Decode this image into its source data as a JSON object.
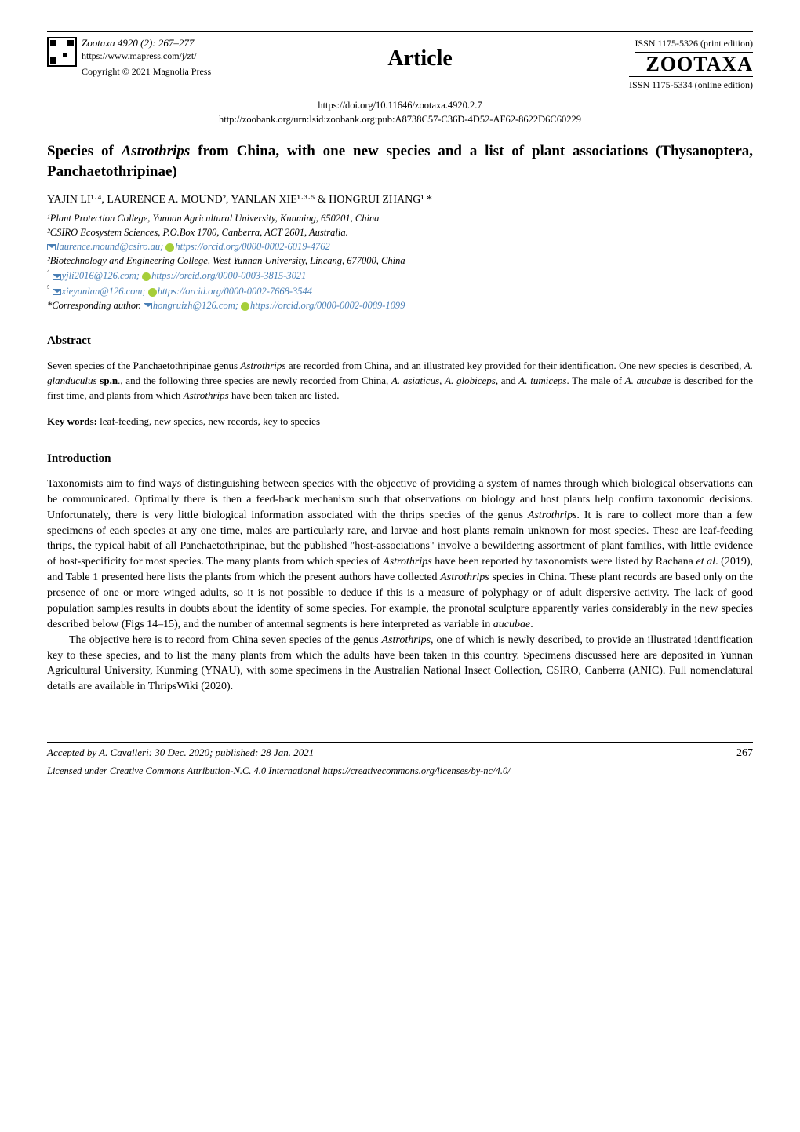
{
  "header": {
    "journal_line": "Zootaxa 4920 (2): 267–277",
    "url_line": "https://www.mapress.com/j/zt/",
    "copyright_line": "Copyright © 2021 Magnolia Press",
    "article_label": "Article",
    "issn_print": "ISSN 1175-5326 (print edition)",
    "logo_text": "ZOOTAXA",
    "issn_online": "ISSN 1175-5334 (online edition)",
    "doi": "https://doi.org/10.11646/zootaxa.4920.2.7",
    "zoobank": "http://zoobank.org/urn:lsid:zoobank.org:pub:A8738C57-C36D-4D52-AF62-8622D6C60229"
  },
  "title": "Species of Astrothrips from China, with one new species and a list of plant associations (Thysanoptera, Panchaetothripinae)",
  "authors_line": "YAJIN LI¹·⁴, LAURENCE A. MOUND², YANLAN XIE¹·³·⁵ & HONGRUI ZHANG¹ *",
  "affiliations": {
    "a1": "¹Plant Protection College, Yunnan Agricultural University, Kunming, 650201, China",
    "a2": "²CSIRO Ecosystem Sciences, P.O.Box 1700, Canberra, ACT 2601, Australia.",
    "a2_email": "laurence.mound@csiro.au;",
    "a2_orcid": "https://orcid.org/0000-0002-6019-4762",
    "a3": "²Biotechnology and Engineering College, West Yunnan University, Lincang, 677000, China",
    "a4_sup": "⁴",
    "a4_email": "yjli2016@126.com;",
    "a4_orcid": "https://orcid.org/0000-0003-3815-3021",
    "a5_sup": "⁵",
    "a5_email": "xieyanlan@126.com;",
    "a5_orcid": "https://orcid.org/0000-0002-7668-3544",
    "corr_label": "*Corresponding author.",
    "corr_email": "hongruizh@126.com;",
    "corr_orcid": "https://orcid.org/0000-0002-0089-1099"
  },
  "abstract": {
    "heading": "Abstract",
    "text": "Seven species of the Panchaetothripinae genus Astrothrips are recorded from China, and an illustrated key provided for their identification. One new species is described, A. glanduculus sp.n., and the following three species are newly recorded from China, A. asiaticus, A. globiceps, and A. tumiceps. The male of A. aucubae is described for the first time, and plants from which Astrothrips have been taken are listed.",
    "keywords_label": "Key words:",
    "keywords_text": " leaf-feeding, new species, new records, key to species"
  },
  "introduction": {
    "heading": "Introduction",
    "p1": "Taxonomists aim to find ways of distinguishing between species with the objective of providing a system of names through which biological observations can be communicated. Optimally there is then a feed-back mechanism such that observations on biology and host plants help confirm taxonomic decisions. Unfortunately, there is very little biological information associated with the thrips species of the genus Astrothrips. It is rare to collect more than a few specimens of each species at any one time, males are particularly rare, and larvae and host plants remain unknown for most species. These are leaf-feeding thrips, the typical habit of all Panchaetothripinae, but the published \"host-associations\" involve a bewildering assortment of plant families, with little evidence of host-specificity for most species. The many plants from which species of Astrothrips have been reported by taxonomists were listed by Rachana et al. (2019), and Table 1 presented here lists the plants from which the present authors have collected Astrothrips species in China. These plant records are based only on the presence of one or more winged adults, so it is not possible to deduce if this is a measure of polyphagy or of adult dispersive activity. The lack of good population samples results in doubts about the identity of some species. For example, the pronotal sculpture apparently varies considerably in the new species described below (Figs 14–15), and the number of antennal segments is here interpreted as variable in aucubae.",
    "p2": "The objective here is to record from China seven species of the genus Astrothrips, one of which is newly described, to provide an illustrated identification key to these species, and to list the many plants from which the adults have been taken in this country. Specimens discussed here are deposited in Yunnan Agricultural University, Kunming (YNAU), with some specimens in the Australian National Insect Collection, CSIRO, Canberra (ANIC). Full nomenclatural details are available in ThripsWiki (2020)."
  },
  "footer": {
    "accepted": "Accepted by A. Cavalleri: 30 Dec. 2020; published: 28 Jan. 2021",
    "page": "267",
    "license": "Licensed under Creative Commons Attribution-N.C. 4.0 International https://creativecommons.org/licenses/by-nc/4.0/"
  },
  "colors": {
    "link": "#4a7fb5",
    "orcid": "#a6ce39",
    "text": "#000000",
    "bg": "#ffffff"
  }
}
